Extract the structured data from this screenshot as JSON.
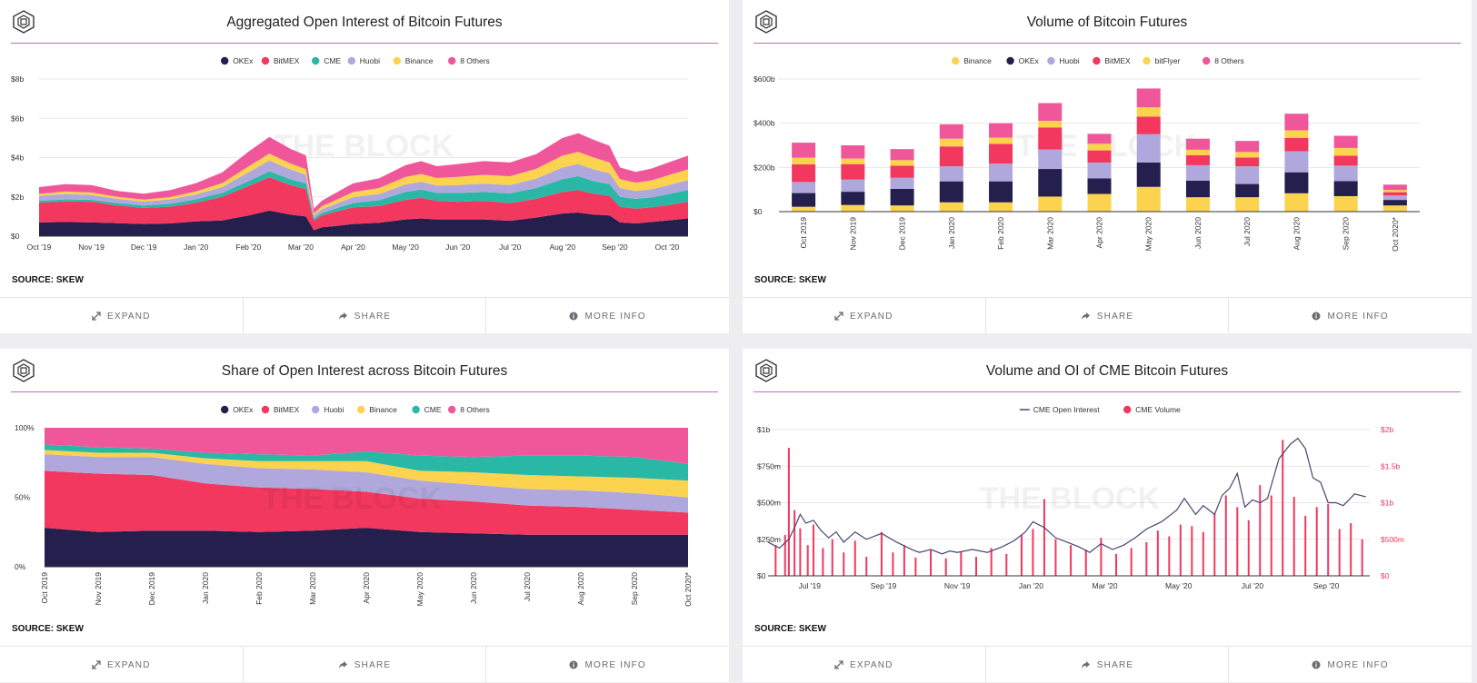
{
  "source_label": "SOURCE: SKEW",
  "watermark": "THE BLOCK",
  "actions": {
    "expand": "EXPAND",
    "share": "SHARE",
    "more_info": "MORE INFO"
  },
  "colors": {
    "OKEx": "#241f4d",
    "BitMEX": "#f2385e",
    "CME": "#2ab8a6",
    "Huobi": "#b0a8dc",
    "Binance": "#fcd34f",
    "8 Others": "#f0579a",
    "bitFlyer": "#fcd34f",
    "CME Open Interest": "#4a4570",
    "CME Volume": "#f2385e"
  },
  "chart_data": [
    {
      "type": "area",
      "title": "Aggregated Open Interest of Bitcoin Futures",
      "stacked": true,
      "legend_position": "top-center",
      "ylim": [
        0,
        8
      ],
      "y_tick_labels": [
        "$0",
        "$2b",
        "$4b",
        "$6b",
        "$8b"
      ],
      "y_tick_values": [
        0,
        2,
        4,
        6,
        8
      ],
      "x_tick_labels": [
        "Oct '19",
        "Nov '19",
        "Dec '19",
        "Jan '20",
        "Feb '20",
        "Mar '20",
        "Apr '20",
        "May '20",
        "Jun '20",
        "Jul '20",
        "Aug '20",
        "Sep '20",
        "Oct '20"
      ],
      "x": [
        0,
        0.5,
        1,
        1.5,
        2,
        2.5,
        3,
        3.5,
        4,
        4.4,
        4.8,
        5.1,
        5.25,
        5.4,
        5.6,
        6,
        6.5,
        7,
        7.3,
        7.6,
        8,
        8.5,
        9,
        9.5,
        10,
        10.3,
        10.6,
        10.9,
        11.1,
        11.4,
        11.7,
        12,
        12.4
      ],
      "series": [
        {
          "name": "OKEx",
          "values": [
            0.7,
            0.72,
            0.7,
            0.66,
            0.62,
            0.65,
            0.75,
            0.8,
            1.05,
            1.3,
            1.1,
            1.0,
            0.3,
            0.45,
            0.5,
            0.62,
            0.68,
            0.85,
            0.9,
            0.85,
            0.85,
            0.85,
            0.78,
            0.95,
            1.15,
            1.2,
            1.1,
            1.05,
            0.7,
            0.65,
            0.72,
            0.8,
            0.9
          ]
        },
        {
          "name": "BitMEX",
          "values": [
            1.0,
            1.05,
            1.05,
            0.9,
            0.82,
            0.85,
            0.95,
            1.2,
            1.5,
            1.7,
            1.5,
            1.4,
            0.5,
            0.6,
            0.7,
            0.85,
            0.85,
            1.0,
            1.05,
            0.95,
            0.9,
            0.95,
            0.9,
            0.95,
            1.1,
            1.15,
            1.05,
            1.0,
            0.8,
            0.75,
            0.75,
            0.78,
            0.85
          ]
        },
        {
          "name": "CME",
          "values": [
            0.1,
            0.1,
            0.1,
            0.12,
            0.12,
            0.15,
            0.18,
            0.2,
            0.25,
            0.3,
            0.3,
            0.28,
            0.1,
            0.12,
            0.15,
            0.22,
            0.3,
            0.4,
            0.42,
            0.4,
            0.45,
            0.45,
            0.5,
            0.55,
            0.65,
            0.7,
            0.65,
            0.6,
            0.5,
            0.5,
            0.5,
            0.55,
            0.6
          ]
        },
        {
          "name": "Huobi",
          "values": [
            0.25,
            0.28,
            0.25,
            0.22,
            0.2,
            0.22,
            0.25,
            0.3,
            0.45,
            0.55,
            0.5,
            0.45,
            0.15,
            0.2,
            0.22,
            0.3,
            0.32,
            0.38,
            0.4,
            0.38,
            0.4,
            0.42,
            0.42,
            0.48,
            0.6,
            0.62,
            0.6,
            0.55,
            0.45,
            0.4,
            0.42,
            0.45,
            0.5
          ]
        },
        {
          "name": "Binance",
          "values": [
            0.1,
            0.12,
            0.12,
            0.1,
            0.1,
            0.12,
            0.15,
            0.2,
            0.3,
            0.35,
            0.3,
            0.28,
            0.1,
            0.15,
            0.18,
            0.25,
            0.3,
            0.38,
            0.4,
            0.38,
            0.42,
            0.45,
            0.45,
            0.5,
            0.6,
            0.62,
            0.6,
            0.55,
            0.45,
            0.42,
            0.45,
            0.5,
            0.55
          ]
        },
        {
          "name": "8 Others",
          "values": [
            0.35,
            0.38,
            0.38,
            0.3,
            0.3,
            0.35,
            0.42,
            0.55,
            0.75,
            0.85,
            0.75,
            0.7,
            0.25,
            0.28,
            0.35,
            0.45,
            0.5,
            0.6,
            0.65,
            0.6,
            0.65,
            0.7,
            0.7,
            0.75,
            0.9,
            0.95,
            0.9,
            0.85,
            0.6,
            0.55,
            0.6,
            0.65,
            0.7
          ]
        }
      ]
    },
    {
      "type": "bar",
      "title": "Volume of Bitcoin Futures",
      "stacked": true,
      "legend_position": "top-center",
      "ylim": [
        0,
        600
      ],
      "y_tick_labels": [
        "$0",
        "$200b",
        "$400b",
        "$600b"
      ],
      "y_tick_values": [
        0,
        200,
        400,
        600
      ],
      "categories": [
        "Oct 2019",
        "Nov 2019",
        "Dec 2019",
        "Jan 2020",
        "Feb 2020",
        "Mar 2020",
        "Apr 2020",
        "May 2020",
        "Jun 2020",
        "Jul 2020",
        "Aug 2020",
        "Sep 2020",
        "Oct 2020*"
      ],
      "series": [
        {
          "name": "Binance",
          "values": [
            22,
            30,
            28,
            42,
            42,
            68,
            80,
            112,
            65,
            65,
            83,
            70,
            28
          ]
        },
        {
          "name": "OKEx",
          "values": [
            62,
            60,
            75,
            95,
            95,
            125,
            70,
            110,
            75,
            60,
            95,
            68,
            25
          ]
        },
        {
          "name": "Huobi",
          "values": [
            50,
            55,
            50,
            68,
            80,
            88,
            72,
            128,
            70,
            80,
            95,
            70,
            20
          ]
        },
        {
          "name": "BitMEX",
          "values": [
            80,
            70,
            55,
            90,
            90,
            100,
            55,
            80,
            45,
            40,
            60,
            45,
            15
          ]
        },
        {
          "name": "bitFlyer",
          "values": [
            30,
            25,
            25,
            35,
            28,
            30,
            30,
            42,
            25,
            25,
            35,
            35,
            10
          ]
        },
        {
          "name": "8 Others",
          "values": [
            68,
            60,
            50,
            65,
            65,
            80,
            45,
            85,
            50,
            50,
            75,
            55,
            24
          ]
        }
      ]
    },
    {
      "type": "area",
      "title": "Share of Open Interest across Bitcoin Futures",
      "stacked": true,
      "percent": true,
      "legend_position": "top-center",
      "ylim": [
        0,
        100
      ],
      "y_tick_labels": [
        "0%",
        "50%",
        "100%"
      ],
      "y_tick_values": [
        0,
        50,
        100
      ],
      "categories": [
        "Oct 2019",
        "Nov 2019",
        "Dec 2019",
        "Jan 2020",
        "Feb 2020",
        "Mar 2020",
        "Apr 2020",
        "May 2020",
        "Jun 2020",
        "Jul 2020",
        "Aug 2020",
        "Sep 2020",
        "Oct 2020*"
      ],
      "series": [
        {
          "name": "OKEx",
          "values": [
            28,
            25,
            26,
            26,
            25,
            26,
            28,
            25,
            24,
            23,
            23,
            23,
            23
          ]
        },
        {
          "name": "BitMEX",
          "values": [
            41,
            42,
            40,
            34,
            32,
            30,
            26,
            24,
            23,
            21,
            20,
            18,
            16
          ]
        },
        {
          "name": "Huobi",
          "values": [
            12,
            12,
            13,
            14,
            14,
            14,
            14,
            13,
            12,
            12,
            12,
            12,
            11
          ]
        },
        {
          "name": "Binance",
          "values": [
            3,
            3,
            3,
            4,
            5,
            6,
            8,
            7,
            9,
            10,
            10,
            11,
            12
          ]
        },
        {
          "name": "CME",
          "values": [
            4,
            4,
            3,
            4,
            5,
            4,
            7,
            11,
            11,
            14,
            15,
            15,
            12
          ]
        },
        {
          "name": "8 Others",
          "values": [
            12,
            14,
            15,
            18,
            19,
            20,
            17,
            20,
            21,
            20,
            20,
            21,
            26
          ]
        }
      ]
    },
    {
      "type": "line",
      "title": "Volume and OI of CME Bitcoin Futures",
      "legend_position": "top-center",
      "x_tick_labels": [
        "Jul '19",
        "Sep '19",
        "Nov '19",
        "Jan '20",
        "Mar '20",
        "May '20",
        "Jul '20",
        "Sep '20"
      ],
      "ylim_left": [
        0,
        1000
      ],
      "ylim_right": [
        0,
        2000
      ],
      "y_left_tick_labels": [
        "$0",
        "$250m",
        "$500m",
        "$750m",
        "$1b"
      ],
      "y_left_tick_values": [
        0,
        250,
        500,
        750,
        1000
      ],
      "y_right_tick_labels": [
        "$0",
        "$500m",
        "$1b",
        "$1.5b",
        "$2b"
      ],
      "y_right_tick_values": [
        0,
        500,
        1000,
        1500,
        2000
      ],
      "series": [
        {
          "name": "CME Open Interest",
          "axis": "left",
          "kind": "line",
          "x": [
            0,
            0.3,
            0.55,
            0.7,
            0.85,
            1.0,
            1.2,
            1.4,
            1.6,
            1.8,
            2.0,
            2.3,
            2.6,
            3.0,
            3.4,
            3.8,
            4.0,
            4.3,
            4.6,
            4.8,
            5.0,
            5.4,
            5.8,
            6.2,
            6.5,
            6.8,
            7.0,
            7.3,
            7.6,
            7.9,
            8.2,
            8.5,
            8.8,
            9.1,
            9.4,
            9.7,
            10.0,
            10.4,
            10.8,
            11.0,
            11.3,
            11.5,
            11.8,
            12.0,
            12.2,
            12.4,
            12.6,
            12.8,
            13.0,
            13.2,
            13.5,
            13.8,
            14.0,
            14.2,
            14.4,
            14.6,
            14.8,
            15.0,
            15.2,
            15.5,
            15.8
          ],
          "values": [
            230,
            190,
            250,
            330,
            420,
            360,
            380,
            310,
            260,
            300,
            230,
            300,
            250,
            290,
            230,
            180,
            160,
            180,
            150,
            170,
            160,
            180,
            160,
            200,
            240,
            300,
            370,
            330,
            260,
            230,
            200,
            160,
            220,
            180,
            210,
            260,
            320,
            370,
            450,
            530,
            420,
            480,
            420,
            550,
            600,
            700,
            470,
            520,
            500,
            530,
            800,
            900,
            940,
            870,
            670,
            640,
            500,
            500,
            480,
            560,
            540
          ]
        },
        {
          "name": "CME Volume",
          "axis": "right",
          "kind": "bars",
          "x": [
            0.2,
            0.45,
            0.55,
            0.7,
            0.85,
            1.05,
            1.2,
            1.45,
            1.7,
            2.0,
            2.3,
            2.6,
            3.0,
            3.3,
            3.6,
            3.9,
            4.3,
            4.7,
            5.1,
            5.5,
            5.9,
            6.3,
            6.7,
            7.0,
            7.3,
            7.6,
            8.0,
            8.4,
            8.8,
            9.2,
            9.6,
            10.0,
            10.3,
            10.6,
            10.9,
            11.2,
            11.5,
            11.8,
            12.1,
            12.4,
            12.7,
            13.0,
            13.3,
            13.6,
            13.9,
            14.2,
            14.5,
            14.8,
            15.1,
            15.4,
            15.7
          ],
          "values": [
            420,
            560,
            1750,
            900,
            650,
            420,
            700,
            380,
            500,
            320,
            480,
            260,
            600,
            320,
            420,
            250,
            350,
            240,
            330,
            260,
            380,
            300,
            560,
            640,
            1050,
            500,
            420,
            360,
            520,
            300,
            380,
            460,
            620,
            540,
            700,
            680,
            600,
            860,
            1100,
            940,
            760,
            1240,
            1100,
            1860,
            1080,
            820,
            940,
            980,
            640,
            720,
            500
          ]
        }
      ]
    }
  ]
}
